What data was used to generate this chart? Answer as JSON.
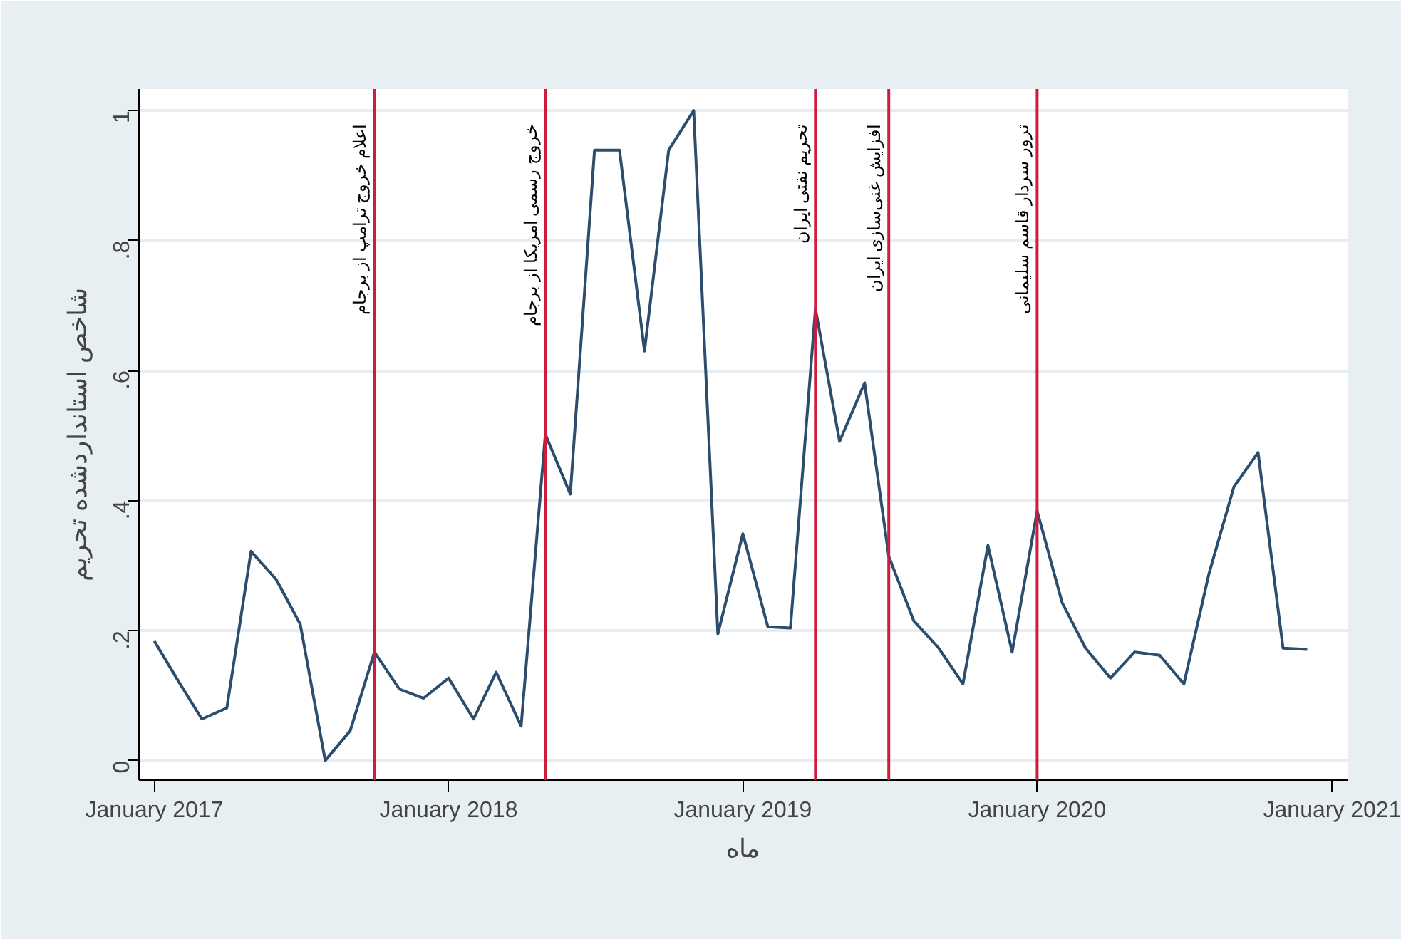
{
  "chart_data": {
    "type": "line",
    "xlabel": "ماه",
    "ylabel": "شاخص استانداردشده تحریم",
    "x": [
      "2017-01",
      "2017-02",
      "2017-03",
      "2017-04",
      "2017-05",
      "2017-06",
      "2017-07",
      "2017-08",
      "2017-09",
      "2017-10",
      "2017-11",
      "2017-12",
      "2018-01",
      "2018-02",
      "2018-03",
      "2018-04",
      "2018-05",
      "2018-06",
      "2018-07",
      "2018-08",
      "2018-09",
      "2018-10",
      "2018-11",
      "2018-12",
      "2019-01",
      "2019-02",
      "2019-03",
      "2019-04",
      "2019-05",
      "2019-06",
      "2019-07",
      "2019-08",
      "2019-09",
      "2019-10",
      "2019-11",
      "2019-12",
      "2020-01",
      "2020-02",
      "2020-03",
      "2020-04",
      "2020-05",
      "2020-06",
      "2020-07",
      "2020-08",
      "2020-09",
      "2020-10",
      "2020-11",
      "2020-12"
    ],
    "series": [
      {
        "color": "#2b4d6e",
        "values": [
          0.184,
          0.12,
          0.064,
          0.081,
          0.322,
          0.279,
          0.21,
          0,
          0.046,
          0.167,
          0.11,
          0.096,
          0.127,
          0.064,
          0.136,
          0.053,
          0.502,
          0.41,
          0.939,
          0.939,
          0.63,
          0.939,
          1,
          0.195,
          0.349,
          0.206,
          0.204,
          0.695,
          0.491,
          0.581,
          0.314,
          0.215,
          0.173,
          0.118,
          0.331,
          0.167,
          0.384,
          0.243,
          0.173,
          0.127,
          0.167,
          0.162,
          0.118,
          0.287,
          0.421,
          0.474,
          0.173,
          0.171
        ]
      }
    ],
    "xlim": [
      "2016-12-13",
      "2021-01-20"
    ],
    "xticks": [
      {
        "value": "2017-01",
        "label": "January 2017"
      },
      {
        "value": "2018-01",
        "label": "January 2018"
      },
      {
        "value": "2019-01",
        "label": "January 2019"
      },
      {
        "value": "2020-01",
        "label": "January 2020"
      },
      {
        "value": "2021-01",
        "label": "January 2021"
      }
    ],
    "ylim": [
      -0.03,
      1.033
    ],
    "yticks": [
      0,
      {
        "value": 0.2,
        "label": ".2"
      },
      {
        "value": 0.4,
        "label": ".4"
      },
      {
        "value": 0.6,
        "label": ".6"
      },
      {
        "value": 0.8,
        "label": ".8"
      },
      1
    ],
    "grid": "y",
    "line_style": "solid",
    "marker": "none",
    "ref_lines": [
      {
        "axis": "x",
        "value": "2017-10",
        "label": "اعلام خروج ترامپ از برجام",
        "color": "#d01c3c"
      },
      {
        "axis": "x",
        "value": "2018-05",
        "label": "خروج رسمی امریکا از برجام",
        "color": "#d01c3c"
      },
      {
        "axis": "x",
        "value": "2019-04",
        "label": "تحریم نفتی ایران",
        "color": "#d01c3c"
      },
      {
        "axis": "x",
        "value": "2019-07",
        "label": "افزایش غنی‌سازی ایران",
        "color": "#d01c3c"
      },
      {
        "axis": "x",
        "value": "2020-01",
        "label": "ترور سردار قاسم سلیمانی",
        "color": "#d01c3c"
      }
    ]
  }
}
